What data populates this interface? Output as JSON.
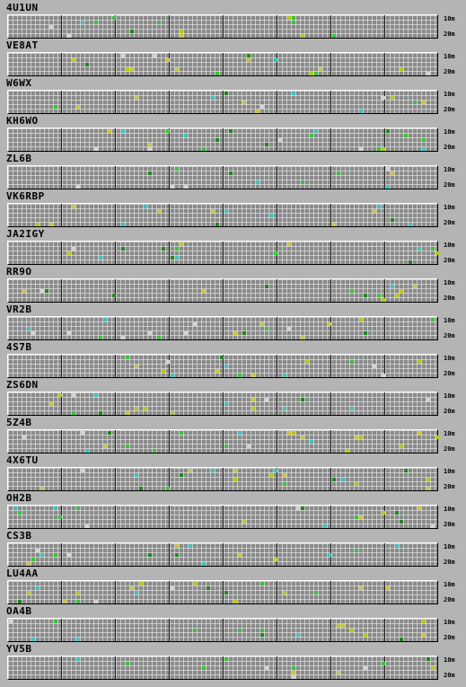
{
  "band_labels": {
    "top": "10m",
    "bottom": "20m"
  },
  "stations": [
    {
      "callsign": "4U1UN"
    },
    {
      "callsign": "VE8AT"
    },
    {
      "callsign": "W6WX"
    },
    {
      "callsign": "KH6WO"
    },
    {
      "callsign": "ZL6B"
    },
    {
      "callsign": "VK6RBP"
    },
    {
      "callsign": "JA2IGY"
    },
    {
      "callsign": "RR9O"
    },
    {
      "callsign": "VR2B"
    },
    {
      "callsign": "4S7B"
    },
    {
      "callsign": "ZS6DN"
    },
    {
      "callsign": "5Z4B"
    },
    {
      "callsign": "4X6TU"
    },
    {
      "callsign": "OH2B"
    },
    {
      "callsign": "CS3B"
    },
    {
      "callsign": "LU4AA"
    },
    {
      "callsign": "OA4B"
    },
    {
      "callsign": "YV5B"
    }
  ],
  "colors": {
    "background": "#b4b4b4",
    "grid": "#8a8a8a",
    "hour_line": "#1c1c1c",
    "signal_palette": [
      "#c8c832",
      "#30c8c0",
      "#2ec832",
      "#d4d4d4",
      "#b8c800",
      "#1a8a1a"
    ]
  }
}
